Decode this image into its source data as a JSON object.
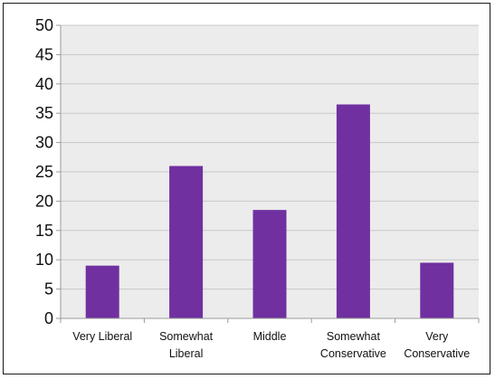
{
  "chart_data": {
    "type": "bar",
    "title": "",
    "xlabel": "",
    "ylabel": "",
    "categories": [
      [
        "Very Liberal"
      ],
      [
        "Somewhat",
        "Liberal"
      ],
      [
        "Middle"
      ],
      [
        "Somewhat",
        "Conservative"
      ],
      [
        "Very",
        "Conservative"
      ]
    ],
    "values": [
      9,
      26,
      18.5,
      36.5,
      9.5
    ],
    "ylim": [
      0,
      50
    ],
    "yticks": [
      0,
      5,
      10,
      15,
      20,
      25,
      30,
      35,
      40,
      45,
      50
    ],
    "grid": true,
    "legend": "none",
    "colors": {
      "bar": "#7030a0",
      "gridline": "#c8c8c8",
      "plot_bg": "#ececec",
      "axis": "#9a9a9a"
    }
  }
}
